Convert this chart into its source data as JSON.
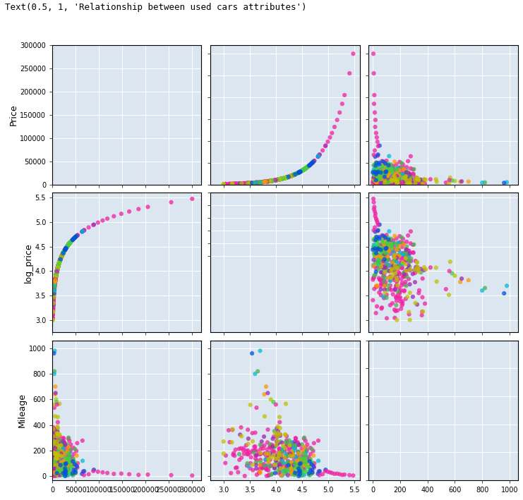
{
  "title": "Relationship between used cars attributes",
  "variables": [
    "Price",
    "log_price",
    "Mileage"
  ],
  "ylabels": [
    "Price",
    "log_price",
    "Mileage"
  ],
  "price_yticks": [
    0,
    50000,
    100000,
    150000,
    200000,
    250000,
    300000
  ],
  "logp_yticks": [
    3.0,
    3.5,
    4.0,
    4.5,
    5.0,
    5.5
  ],
  "mile_yticks": [
    0,
    200,
    400,
    600,
    800,
    1000
  ],
  "price_lim": [
    0,
    320000
  ],
  "logp_lim": [
    2.75,
    5.6
  ],
  "mile_lim": [
    -30,
    1060
  ],
  "n_categories": 8,
  "background_color": "#dce6f0",
  "fig_background": "#ffffff",
  "category_colors": [
    "#f020a0",
    "#00bcd4",
    "#4caf50",
    "#ff9800",
    "#9c27b0",
    "#c0c000",
    "#40d040",
    "#0050e0"
  ],
  "seed": 42
}
